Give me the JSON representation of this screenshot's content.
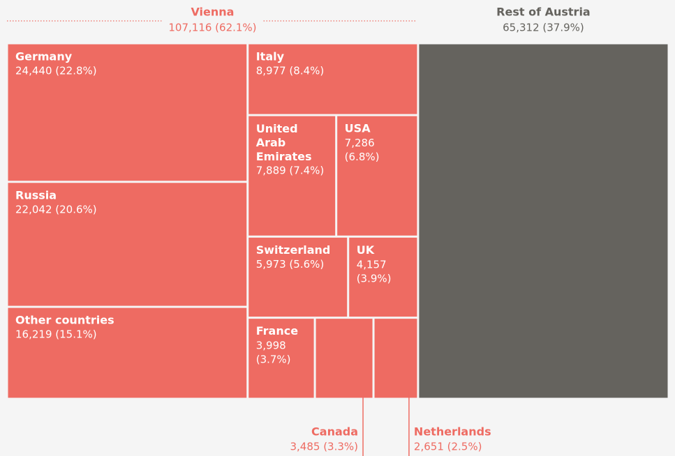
{
  "chart_data": {
    "type": "treemap",
    "groups": [
      {
        "name": "Vienna",
        "value": 107116,
        "value_label": "107,116 (62.1%)",
        "color": "#ee6b62",
        "label_color": "#ee6b62",
        "children": [
          {
            "name": "Germany",
            "value": 24440,
            "value_label": "24,440 (22.8%)"
          },
          {
            "name": "Russia",
            "value": 22042,
            "value_label": "22,042 (20.6%)"
          },
          {
            "name": "Other countries",
            "value": 16219,
            "value_label": "16,219 (15.1%)"
          },
          {
            "name": "Italy",
            "value": 8977,
            "value_label": "8,977 (8.4%)"
          },
          {
            "name": "United Arab Emirates",
            "value": 7889,
            "value_label": "7,889 (7.4%)"
          },
          {
            "name": "USA",
            "value": 7286,
            "value_label": "7,286 (6.8%)"
          },
          {
            "name": "Switzerland",
            "value": 5973,
            "value_label": "5,973 (5.6%)"
          },
          {
            "name": "UK",
            "value": 4157,
            "value_label": "4,157 (3.9%)"
          },
          {
            "name": "France",
            "value": 3998,
            "value_label": "3,998 (3.7%)"
          },
          {
            "name": "Canada",
            "value": 3485,
            "value_label": "3,485 (3.3%)"
          },
          {
            "name": "Netherlands",
            "value": 2651,
            "value_label": "2,651 (2.5%)"
          }
        ]
      },
      {
        "name": "Rest of Austria",
        "value": 65312,
        "value_label": "65,312 (37.9%)",
        "color": "#65635e",
        "label_color": "#65635e"
      }
    ]
  }
}
